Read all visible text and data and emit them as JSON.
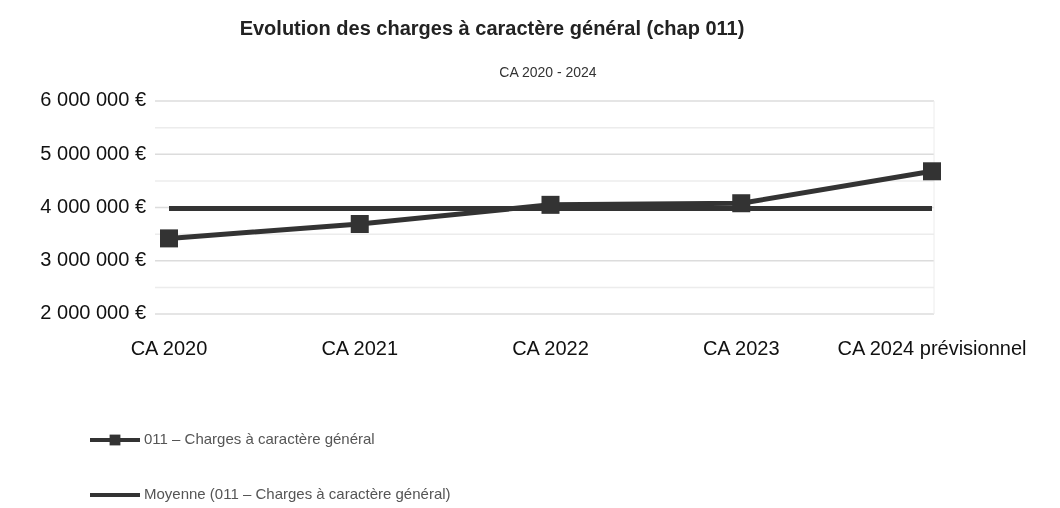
{
  "chart_data": {
    "type": "line",
    "title": "Evolution des charges à caractère général (chap 011)",
    "subtitle": "CA 2020 - 2024",
    "categories": [
      "CA 2020",
      "CA 2021",
      "CA 2022",
      "CA 2023",
      "CA 2024 prévisionnel"
    ],
    "series": [
      {
        "name": "011 – Charges à caractère général",
        "color": "#333333",
        "marker": "square",
        "values": [
          3420000,
          3690000,
          4050000,
          4080000,
          4680000
        ]
      },
      {
        "name": "Moyenne (011 – Charges à caractère général)",
        "color": "#333333",
        "marker": "none",
        "values": [
          3980000,
          3980000,
          3980000,
          3980000,
          3980000
        ]
      }
    ],
    "ylim": [
      2000000,
      6000000
    ],
    "yticks": [
      {
        "value": 2000000,
        "label": "2 000 000 €"
      },
      {
        "value": 2500000,
        "label": null
      },
      {
        "value": 3000000,
        "label": "3 000 000 €"
      },
      {
        "value": 3500000,
        "label": null
      },
      {
        "value": 4000000,
        "label": "4 000 000 €"
      },
      {
        "value": 4500000,
        "label": null
      },
      {
        "value": 5000000,
        "label": "5 000 000 €"
      },
      {
        "value": 5500000,
        "label": null
      },
      {
        "value": 6000000,
        "label": "6 000 000 €"
      }
    ],
    "grid": "y",
    "legend": "bottom left"
  }
}
